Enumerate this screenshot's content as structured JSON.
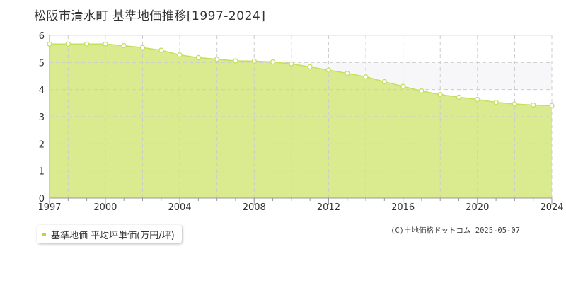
{
  "chart_data": {
    "type": "area",
    "title": "松阪市清水町 基準地価推移[1997-2024]",
    "xlabel": "",
    "ylabel": "",
    "x": [
      1997,
      1998,
      1999,
      2000,
      2001,
      2002,
      2003,
      2004,
      2005,
      2006,
      2007,
      2008,
      2009,
      2010,
      2011,
      2012,
      2013,
      2014,
      2015,
      2016,
      2017,
      2018,
      2019,
      2020,
      2021,
      2022,
      2023,
      2024
    ],
    "series": [
      {
        "name": "基準地価 平均坪単価(万円/坪)",
        "values": [
          5.68,
          5.68,
          5.68,
          5.68,
          5.62,
          5.55,
          5.45,
          5.28,
          5.18,
          5.12,
          5.06,
          5.05,
          5.02,
          4.95,
          4.84,
          4.72,
          4.6,
          4.47,
          4.29,
          4.12,
          3.95,
          3.82,
          3.72,
          3.64,
          3.53,
          3.47,
          3.43,
          3.41
        ]
      }
    ],
    "xlim": [
      1997,
      2024
    ],
    "ylim": [
      0,
      6
    ],
    "x_ticks": [
      "1997",
      "2000",
      "2004",
      "2008",
      "2012",
      "2016",
      "2020",
      "2024"
    ],
    "y_ticks": [
      "0",
      "1",
      "2",
      "3",
      "4",
      "5",
      "6"
    ],
    "grid": true,
    "legend_position": "bottom-left",
    "colors": {
      "area_fill": "#d9ea8f",
      "line": "#c3df5b",
      "marker_fill": "#ffffff",
      "grid": "#cccccc",
      "band": "#f7f7f9",
      "legend_swatch": "#b6d83e"
    }
  },
  "legend": {
    "label": "基準地価 平均坪単価(万円/坪)"
  },
  "credit": "(C)土地価格ドットコム 2025-05-07"
}
